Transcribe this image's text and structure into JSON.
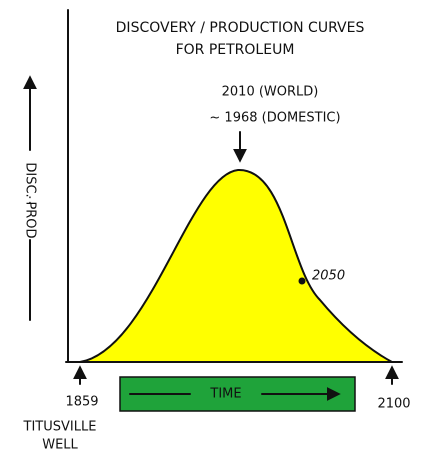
{
  "title": {
    "line1": "Discovery / Production Curves",
    "line2": "for Petroleum"
  },
  "peak": {
    "line1": "2010 (World)",
    "line2": "~ 1968 (Domestic)"
  },
  "y_label": {
    "top": "Disc.",
    "middle": ":",
    "bottom": "Prod"
  },
  "point_label": "2050",
  "time_label": "Time",
  "start": {
    "year": "1859",
    "place_line1": "Titusville",
    "place_line2": "Well"
  },
  "end_year": "2100"
}
